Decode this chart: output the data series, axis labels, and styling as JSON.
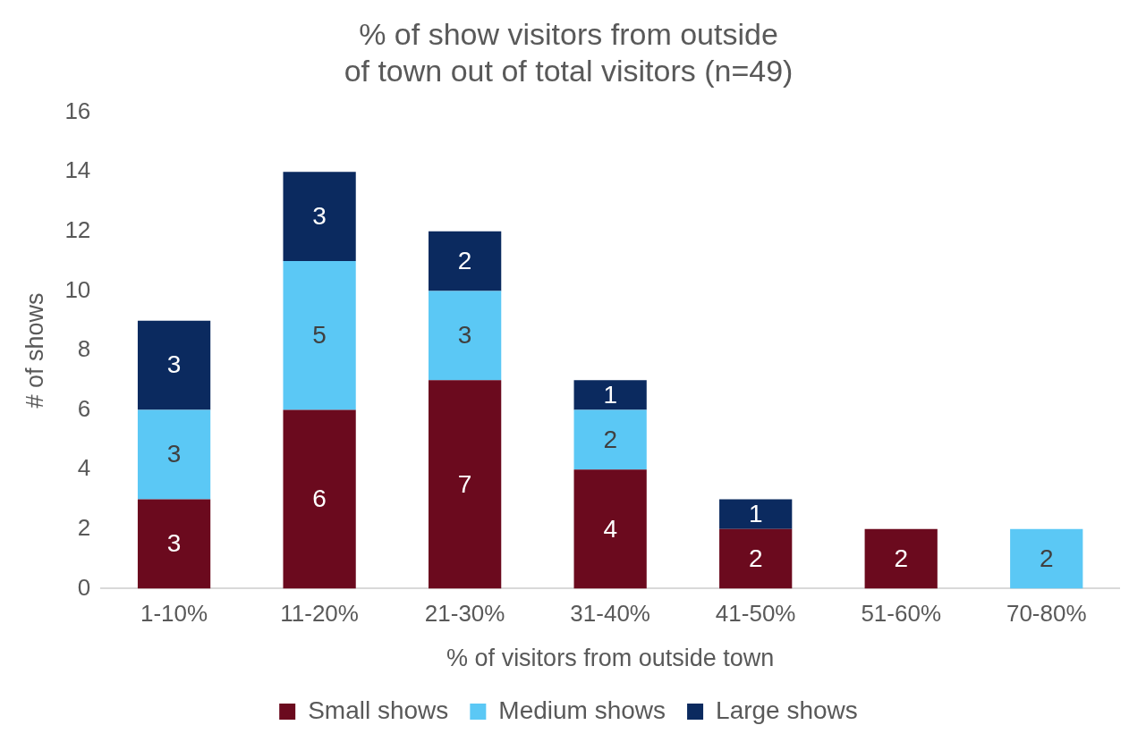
{
  "chart_data": {
    "type": "bar",
    "title": "% of show visitors from outside of town out of total visitors (n=49)",
    "xlabel": "% of visitors from outside town",
    "ylabel": "# of shows",
    "categories": [
      "1-10%",
      "11-20%",
      "21-30%",
      "31-40%",
      "41-50%",
      "51-60%",
      "70-80%"
    ],
    "series": [
      {
        "name": "Small shows",
        "color": "#6b0a1e",
        "values": [
          3,
          6,
          7,
          4,
          2,
          2,
          null
        ]
      },
      {
        "name": "Medium shows",
        "color": "#5bc8f5",
        "values": [
          3,
          5,
          3,
          2,
          null,
          null,
          2
        ]
      },
      {
        "name": "Large shows",
        "color": "#0b2a5f",
        "values": [
          3,
          3,
          2,
          1,
          1,
          null,
          null
        ]
      }
    ],
    "stacked": true,
    "ylim": [
      0,
      16
    ],
    "yticks": [
      0,
      2,
      4,
      6,
      8,
      10,
      12,
      14,
      16
    ],
    "grid": false,
    "legend": "bottom",
    "data_labels": true
  }
}
